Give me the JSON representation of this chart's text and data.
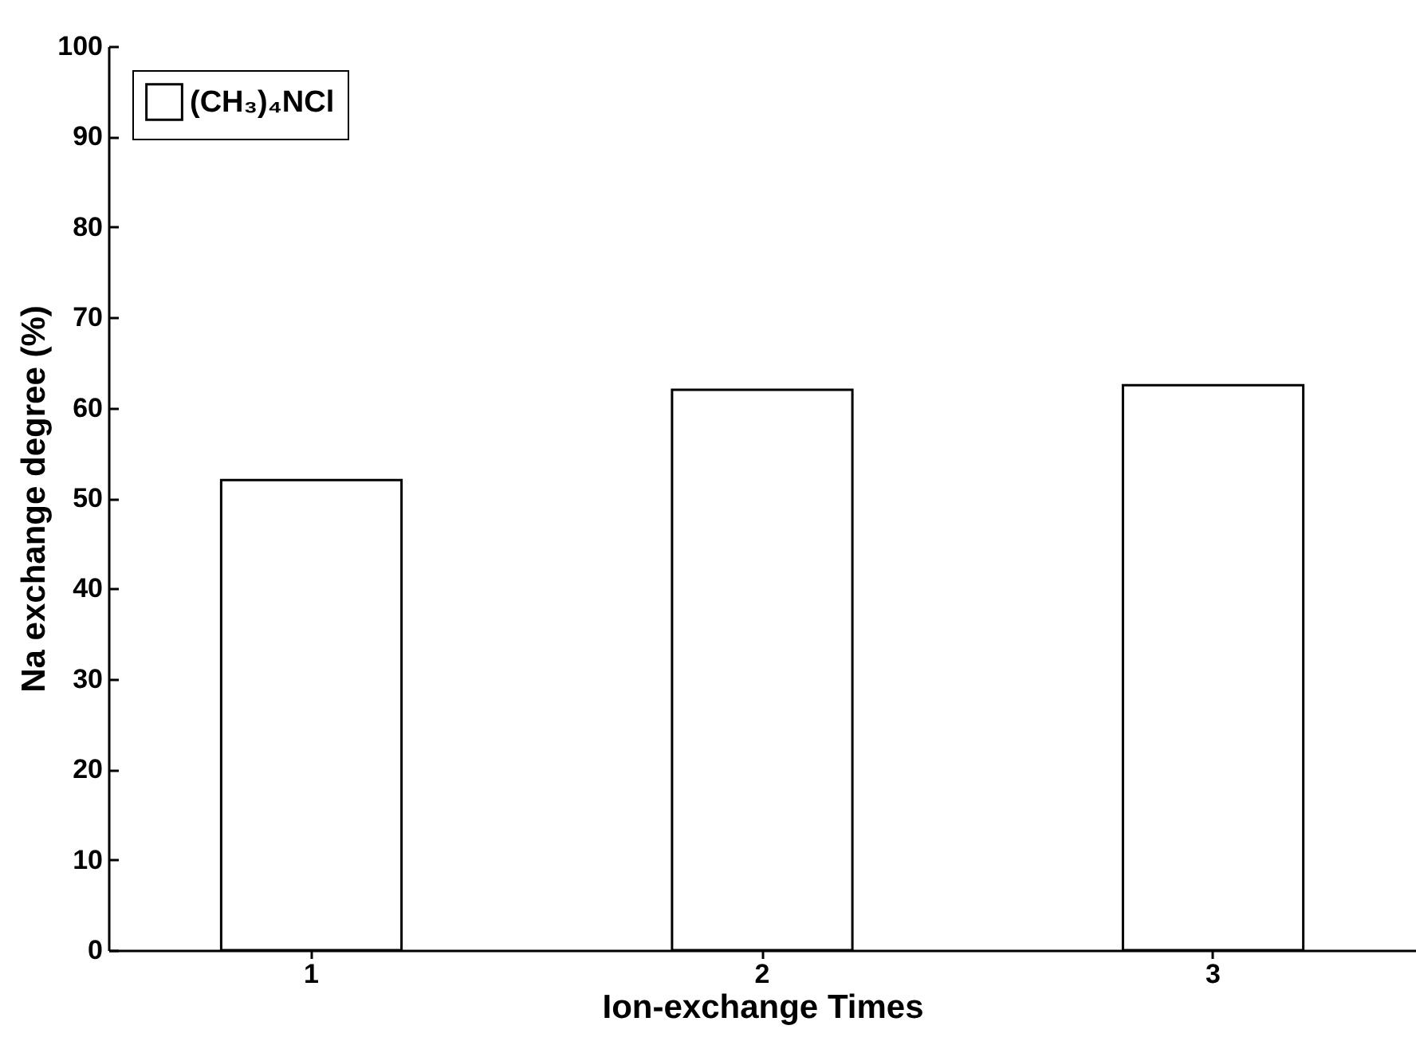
{
  "chart_data": {
    "type": "bar",
    "xlabel": "Ion-exchange Times",
    "ylabel": "Na exchange degree (%)",
    "categories": [
      "1",
      "2",
      "3"
    ],
    "series": [
      {
        "name": "(CH₃)₄NCl",
        "color": "#ffffff",
        "values": [
          52,
          62,
          62.5
        ]
      }
    ],
    "ylim": [
      0,
      100
    ],
    "yticks": [
      0,
      10,
      20,
      30,
      40,
      50,
      60,
      70,
      80,
      90,
      100
    ],
    "grid": false,
    "legend": "top left"
  }
}
